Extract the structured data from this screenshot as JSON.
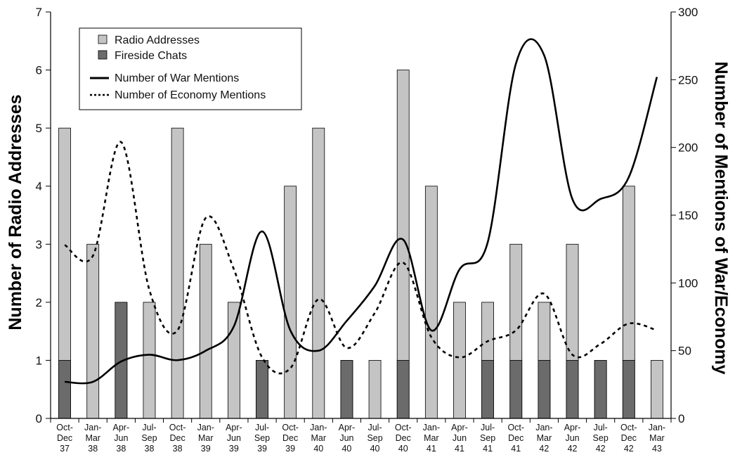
{
  "chart_data": {
    "type": "bar",
    "categories": [
      [
        "Oct-",
        "Dec",
        "37"
      ],
      [
        "Jan-",
        "Mar",
        "38"
      ],
      [
        "Apr-",
        "Jun",
        "38"
      ],
      [
        "Jul-",
        "Sep",
        "38"
      ],
      [
        "Oct-",
        "Dec",
        "38"
      ],
      [
        "Jan-",
        "Mar",
        "39"
      ],
      [
        "Apr-",
        "Jun",
        "39"
      ],
      [
        "Jul-",
        "Sep",
        "39"
      ],
      [
        "Oct-",
        "Dec",
        "39"
      ],
      [
        "Jan-",
        "Mar",
        "40"
      ],
      [
        "Apr-",
        "Jun",
        "40"
      ],
      [
        "Jul-",
        "Sep",
        "40"
      ],
      [
        "Oct-",
        "Dec",
        "40"
      ],
      [
        "Jan-",
        "Mar",
        "41"
      ],
      [
        "Apr-",
        "Jun",
        "41"
      ],
      [
        "Jul-",
        "Sep",
        "41"
      ],
      [
        "Oct-",
        "Dec",
        "41"
      ],
      [
        "Jan-",
        "Mar",
        "42"
      ],
      [
        "Apr-",
        "Jun",
        "42"
      ],
      [
        "Jul-",
        "Sep",
        "42"
      ],
      [
        "Oct-",
        "Dec",
        "42"
      ],
      [
        "Jan-",
        "Mar",
        "43"
      ]
    ],
    "ylabel_left": "Number of Radio Addresses",
    "ylabel_right": "Number of Mentions of War/Economy",
    "ylim_left": [
      0,
      7
    ],
    "ylim_right": [
      0,
      300
    ],
    "yticks_left": [
      0,
      1,
      2,
      3,
      4,
      5,
      6,
      7
    ],
    "yticks_right": [
      0,
      50,
      100,
      150,
      200,
      250,
      300
    ],
    "grid": false,
    "legend_position": "top-left",
    "series": [
      {
        "name": "Radio Addresses",
        "kind": "bar",
        "axis": "left",
        "color": "#c4c4c4",
        "values": [
          5,
          3,
          2,
          2,
          5,
          3,
          2,
          1,
          4,
          5,
          1,
          1,
          6,
          4,
          2,
          2,
          3,
          2,
          3,
          1,
          4,
          1
        ]
      },
      {
        "name": "Fireside Chats",
        "kind": "bar",
        "axis": "left",
        "color": "#6b6b6b",
        "values": [
          1,
          0,
          2,
          0,
          0,
          0,
          0,
          1,
          0,
          0,
          1,
          0,
          1,
          0,
          0,
          1,
          1,
          1,
          1,
          1,
          1,
          0
        ]
      },
      {
        "name": "Number of War Mentions",
        "kind": "line",
        "style": "solid",
        "axis": "right",
        "color": "#000000",
        "values": [
          27,
          27,
          42,
          47,
          43,
          50,
          68,
          138,
          65,
          50,
          72,
          98,
          132,
          65,
          110,
          130,
          262,
          268,
          162,
          162,
          178,
          252
        ]
      },
      {
        "name": "Number of Economy Mentions",
        "kind": "line",
        "style": "dotted",
        "axis": "right",
        "color": "#000000",
        "values": [
          128,
          120,
          204,
          95,
          65,
          148,
          110,
          45,
          37,
          88,
          52,
          78,
          115,
          60,
          45,
          57,
          65,
          92,
          47,
          55,
          70,
          65
        ]
      }
    ]
  }
}
